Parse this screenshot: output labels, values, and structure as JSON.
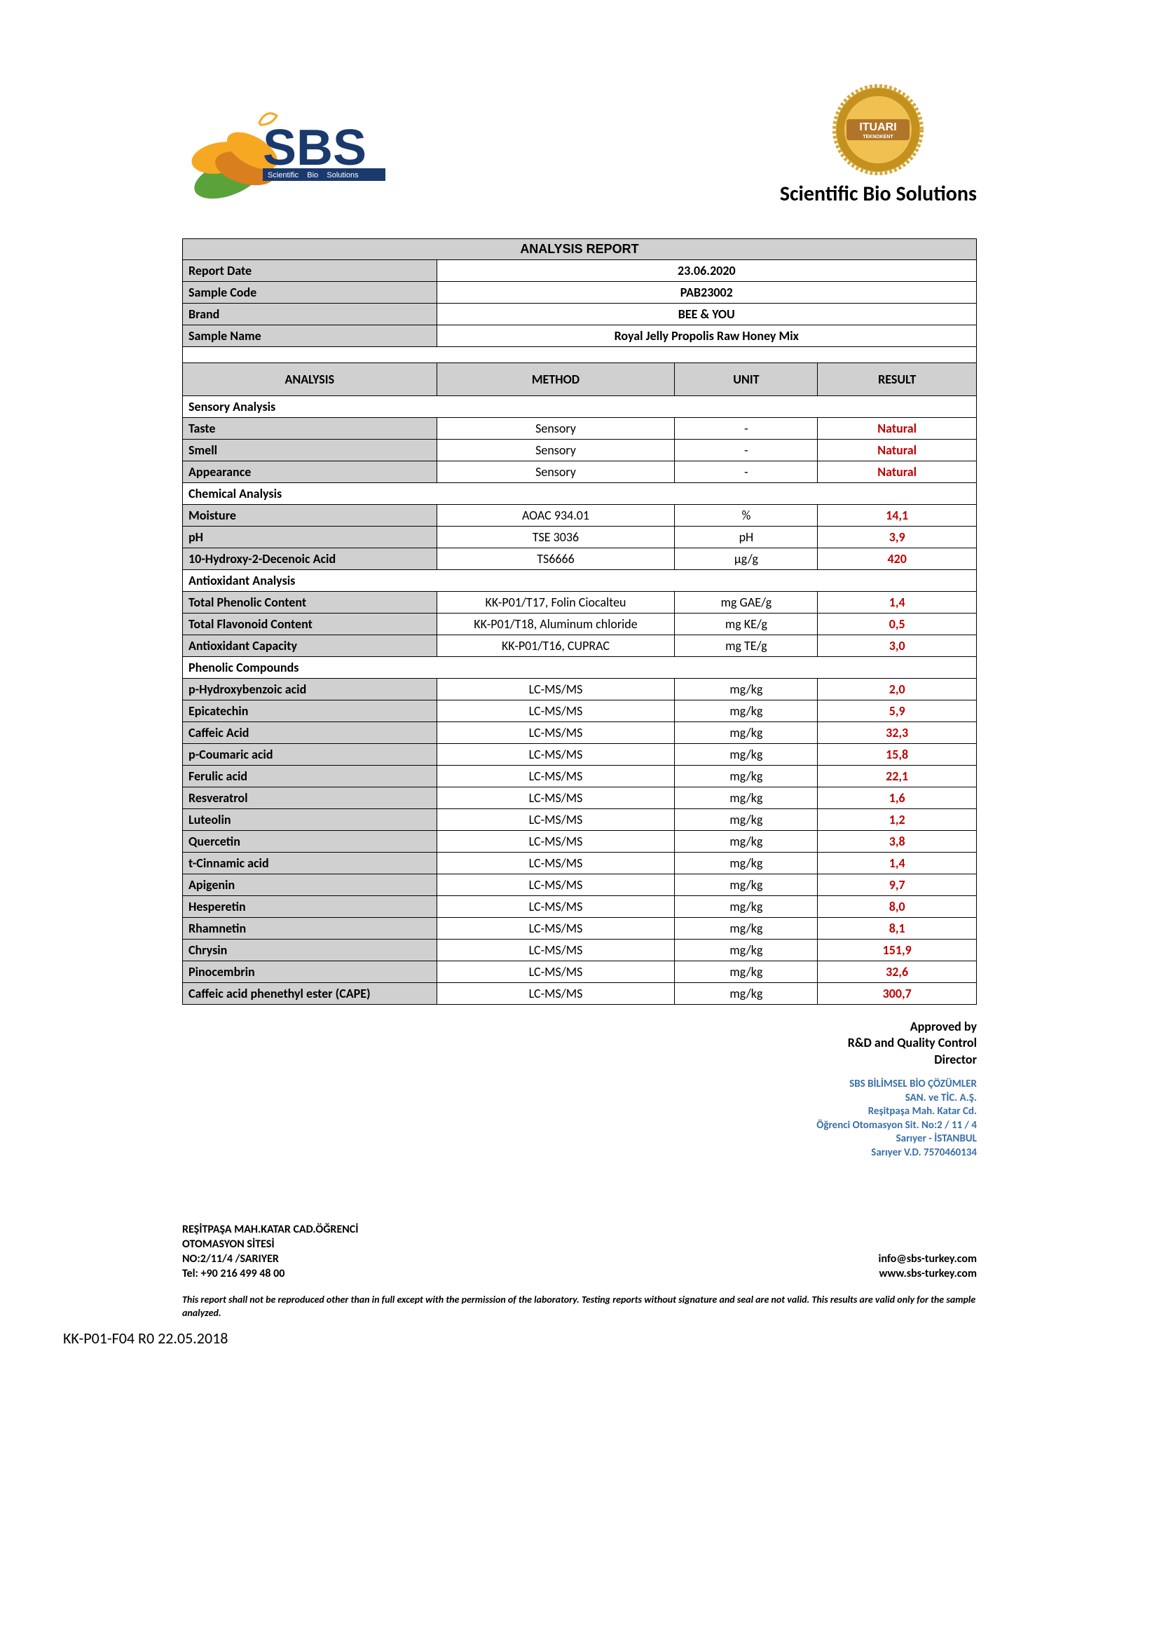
{
  "company": {
    "title": "Scientific Bio Solutions",
    "logo_colors": {
      "text_dark_blue": "#1a3a6e",
      "leaf_orange": "#f7a823",
      "leaf_green": "#5aa33a",
      "leaf_dark_orange": "#d97f1e"
    },
    "seal_colors": {
      "ring_outer": "#d4a93a",
      "ring_inner": "#c4901e",
      "center": "#f0c050",
      "label_bg": "#b0752a",
      "label_text": "#ffffff"
    },
    "seal_text_top": "ITUARI",
    "seal_text_bottom": "TEKNOKENT",
    "logo_text": "SBS",
    "logo_sub": "Scientific   Bio   Solutions"
  },
  "report": {
    "title": "ANALYSIS REPORT",
    "meta": [
      {
        "label": "Report Date",
        "value": "23.06.2020"
      },
      {
        "label": "Sample Code",
        "value": "PAB23002"
      },
      {
        "label": "Brand",
        "value": "BEE & YOU"
      },
      {
        "label": "Sample Name",
        "value": "Royal Jelly Propolis Raw Honey Mix"
      }
    ],
    "columns": {
      "analysis": "ANALYSIS",
      "method": "METHOD",
      "unit": "UNIT",
      "result": "RESULT"
    },
    "result_color": "#c00000",
    "sections": [
      {
        "heading": "Sensory Analysis",
        "rows": [
          {
            "param": "Taste",
            "method": "Sensory",
            "unit": "-",
            "result": "Natural"
          },
          {
            "param": "Smell",
            "method": "Sensory",
            "unit": "-",
            "result": "Natural"
          },
          {
            "param": "Appearance",
            "method": "Sensory",
            "unit": "-",
            "result": "Natural"
          }
        ]
      },
      {
        "heading": "Chemical Analysis",
        "rows": [
          {
            "param": "Moisture",
            "method": "AOAC 934.01",
            "unit": "%",
            "result": "14,1"
          },
          {
            "param": "pH",
            "method": "TSE 3036",
            "unit": "pH",
            "result": "3,9"
          },
          {
            "param": "10-Hydroxy-2-Decenoic Acid",
            "method": "TS6666",
            "unit": "µg/g",
            "result": "420"
          }
        ]
      },
      {
        "heading": "Antioxidant Analysis",
        "tall": true,
        "rows": [
          {
            "param": "Total Phenolic Content",
            "method": "KK-P01/T17, Folin Ciocalteu",
            "unit": "mg GAE/g",
            "result": "1,4"
          },
          {
            "param": "Total  Flavonoid Content",
            "method": "KK-P01/T18, Aluminum chloride",
            "unit": "mg KE/g",
            "result": "0,5"
          },
          {
            "param": "Antioxidant Capacity",
            "method": "KK-P01/T16, CUPRAC",
            "unit": "mg TE/g",
            "result": "3,0"
          }
        ]
      },
      {
        "heading": "Phenolic Compounds",
        "rows": [
          {
            "param": "p-Hydroxybenzoic acid",
            "method": "LC-MS/MS",
            "unit": "mg/kg",
            "result": "2,0"
          },
          {
            "param": "Epicatechin",
            "method": "LC-MS/MS",
            "unit": "mg/kg",
            "result": "5,9"
          },
          {
            "param": "Caffeic Acid",
            "method": "LC-MS/MS",
            "unit": "mg/kg",
            "result": "32,3"
          },
          {
            "param": "p-Coumaric acid",
            "method": "LC-MS/MS",
            "unit": "mg/kg",
            "result": "15,8"
          },
          {
            "param": "Ferulic acid",
            "method": "LC-MS/MS",
            "unit": "mg/kg",
            "result": "22,1"
          },
          {
            "param": "Resveratrol",
            "method": "LC-MS/MS",
            "unit": "mg/kg",
            "result": "1,6"
          },
          {
            "param": "Luteolin",
            "method": "LC-MS/MS",
            "unit": "mg/kg",
            "result": "1,2"
          },
          {
            "param": "Quercetin",
            "method": "LC-MS/MS",
            "unit": "mg/kg",
            "result": "3,8"
          },
          {
            "param": "t-Cinnamic acid",
            "method": "LC-MS/MS",
            "unit": "mg/kg",
            "result": "1,4"
          },
          {
            "param": "Apigenin",
            "method": "LC-MS/MS",
            "unit": "mg/kg",
            "result": "9,7"
          },
          {
            "param": "Hesperetin",
            "method": "LC-MS/MS",
            "unit": "mg/kg",
            "result": "8,0"
          },
          {
            "param": "Rhamnetin",
            "method": "LC-MS/MS",
            "unit": "mg/kg",
            "result": "8,1"
          },
          {
            "param": "Chrysin",
            "method": "LC-MS/MS",
            "unit": "mg/kg",
            "result": "151,9"
          },
          {
            "param": "Pinocembrin",
            "method": "LC-MS/MS",
            "unit": "mg/kg",
            "result": "32,6"
          },
          {
            "param": "Caffeic acid phenethyl ester (CAPE)",
            "method": "LC-MS/MS",
            "unit": "mg/kg",
            "result": "300,7"
          }
        ]
      }
    ]
  },
  "approval": {
    "line1": "Approved by",
    "line2": "R&D and Quality Control",
    "line3": "Director",
    "stamp_color": "#3a6fa8",
    "stamp_line1": "SBS BİLİMSEL BİO ÇÖZÜMLER",
    "stamp_line2": "SAN. ve TİC. A.Ş.",
    "stamp_line3": "Reşitpaşa Mah. Katar Cd.",
    "stamp_line4": "Öğrenci Otomasyon Sit. No:2 / 11 / 4",
    "stamp_line5": "Sarıyer - İSTANBUL",
    "stamp_line6": "Sarıyer V.D. 7570460134"
  },
  "footer": {
    "addr1": "REŞİTPAŞA MAH.KATAR CAD.ÖĞRENCİ",
    "addr2": "OTOMASYON SİTESİ",
    "addr3": "NO:2/11/4 /SARIYER",
    "tel": "Tel: +90 216 499 48 00",
    "email": "info@sbs-turkey.com",
    "web": "www.sbs-turkey.com",
    "disclaimer": "This report shall not be reproduced other than in full except with the permission of the laboratory. Testing reports without signature and seal are not valid. This results are valid only for the sample analyzed."
  },
  "doc_code": "KK-P01-F04 R0 22.05.2018",
  "layout": {
    "col_widths_pct": [
      32,
      30,
      18,
      20
    ]
  }
}
